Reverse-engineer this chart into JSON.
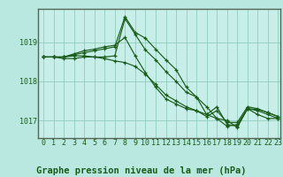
{
  "title": "Graphe pression niveau de la mer (hPa)",
  "bg_color": "#b8e8e0",
  "plot_bg_color": "#c8eeea",
  "grid_color": "#90ccbb",
  "line_color": "#1a5c1a",
  "border_color": "#447744",
  "marker": "+",
  "x_labels": [
    "0",
    "1",
    "2",
    "3",
    "4",
    "5",
    "6",
    "7",
    "8",
    "9",
    "10",
    "11",
    "12",
    "13",
    "14",
    "15",
    "16",
    "17",
    "18",
    "19",
    "20",
    "21",
    "22",
    "23"
  ],
  "yticks": [
    1017,
    1018,
    1019
  ],
  "ylim": [
    1016.55,
    1019.85
  ],
  "xlim": [
    -0.5,
    23.2
  ],
  "lines": [
    [
      1018.62,
      1018.62,
      1018.62,
      1018.68,
      1018.73,
      1018.78,
      1018.83,
      1018.88,
      1019.65,
      1019.25,
      1019.1,
      1018.82,
      1018.55,
      1018.3,
      1017.85,
      1017.6,
      1017.15,
      1017.35,
      1016.9,
      1016.85,
      1017.3,
      1017.25,
      1017.15,
      1017.05
    ],
    [
      1018.62,
      1018.62,
      1018.58,
      1018.58,
      1018.62,
      1018.62,
      1018.62,
      1018.65,
      1019.6,
      1019.2,
      1018.8,
      1018.55,
      1018.25,
      1018.0,
      1017.72,
      1017.6,
      1017.35,
      1017.05,
      1016.85,
      1016.9,
      1017.3,
      1017.15,
      1017.05,
      1017.05
    ],
    [
      1018.62,
      1018.62,
      1018.62,
      1018.7,
      1018.78,
      1018.82,
      1018.88,
      1018.92,
      1019.12,
      1018.65,
      1018.22,
      1017.85,
      1017.55,
      1017.42,
      1017.3,
      1017.25,
      1017.1,
      1017.25,
      1016.95,
      1016.95,
      1017.35,
      1017.3,
      1017.2,
      1017.1
    ],
    [
      1018.62,
      1018.62,
      1018.62,
      1018.65,
      1018.65,
      1018.62,
      1018.58,
      1018.52,
      1018.48,
      1018.38,
      1018.18,
      1017.92,
      1017.65,
      1017.5,
      1017.35,
      1017.25,
      1017.15,
      1017.05,
      1017.0,
      1016.82,
      1017.3,
      1017.28,
      1017.2,
      1017.1
    ]
  ],
  "title_fontsize": 7.5,
  "tick_fontsize": 6.0
}
